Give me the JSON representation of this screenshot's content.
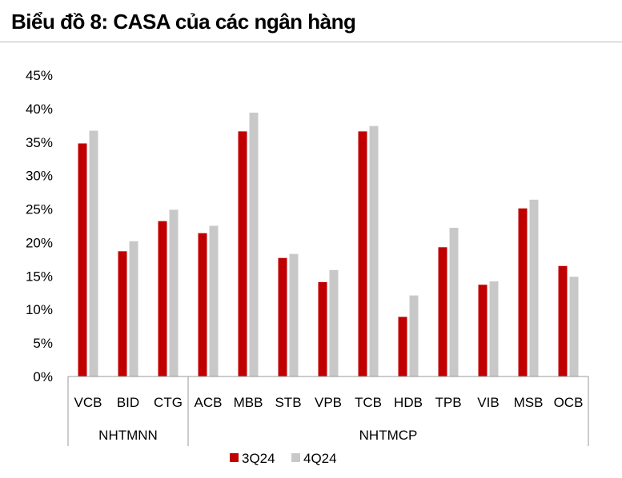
{
  "title": "Biểu đồ 8: CASA của các ngân hàng",
  "colors": {
    "series_3q24": "#c00000",
    "series_4q24": "#c8c8c8",
    "axis": "#999999"
  },
  "chart_data": {
    "type": "bar",
    "categories": [
      "VCB",
      "BID",
      "CTG",
      "ACB",
      "MBB",
      "STB",
      "VPB",
      "TCB",
      "HDB",
      "TPB",
      "VIB",
      "MSB",
      "OCB"
    ],
    "groups": [
      {
        "label": "NHTMNN",
        "from": 0,
        "to": 2
      },
      {
        "label": "NHTMCP",
        "from": 3,
        "to": 12
      }
    ],
    "series": [
      {
        "name": "3Q24",
        "values": [
          34.8,
          18.7,
          23.2,
          21.4,
          36.6,
          17.7,
          14.1,
          36.6,
          8.9,
          19.3,
          13.7,
          25.1,
          16.5
        ]
      },
      {
        "name": "4Q24",
        "values": [
          36.7,
          20.2,
          24.9,
          22.5,
          39.4,
          18.3,
          15.9,
          37.4,
          12.1,
          22.2,
          14.2,
          26.4,
          14.9
        ]
      }
    ],
    "yticks": [
      "0%",
      "5%",
      "10%",
      "15%",
      "20%",
      "25%",
      "30%",
      "35%",
      "40%",
      "45%"
    ],
    "ylim": [
      0,
      45
    ],
    "legend_position": "bottom-center",
    "grid": false
  }
}
